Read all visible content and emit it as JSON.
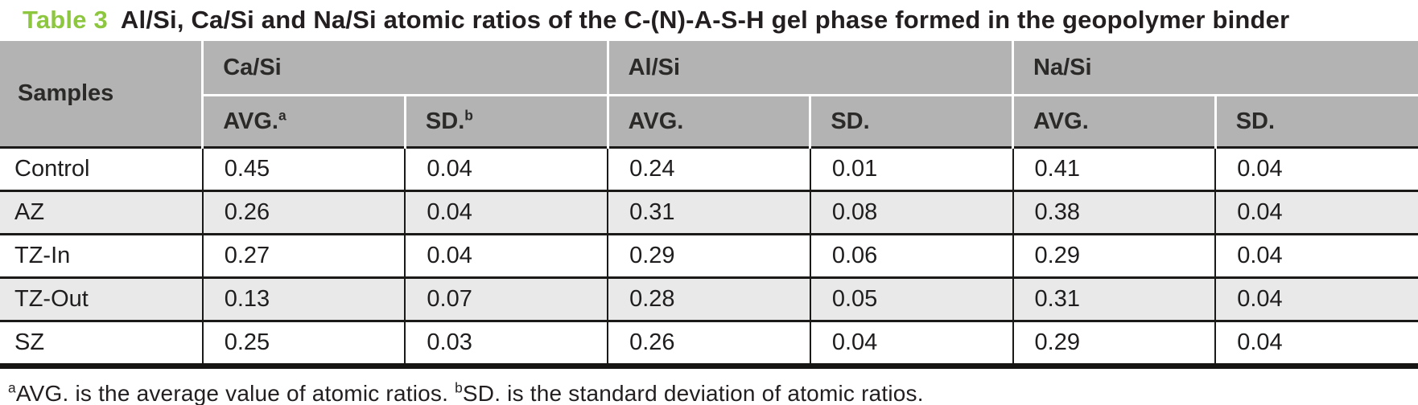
{
  "title": {
    "label": "Table 3",
    "text": "Al/Si, Ca/Si and Na/Si atomic ratios of the C-(N)-A-S-H gel phase formed in the geopolymer binder"
  },
  "table": {
    "samples_header": "Samples",
    "groups": [
      {
        "label": "Ca/Si"
      },
      {
        "label": "Al/Si"
      },
      {
        "label": "Na/Si"
      }
    ],
    "subheaders": {
      "avg": "AVG.",
      "avg_sup": "a",
      "sd": "SD.",
      "sd_sup": "b"
    },
    "rows": [
      {
        "sample": "Control",
        "values": [
          "0.45",
          "0.04",
          "0.24",
          "0.01",
          "0.41",
          "0.04"
        ]
      },
      {
        "sample": "AZ",
        "values": [
          "0.26",
          "0.04",
          "0.31",
          "0.08",
          "0.38",
          "0.04"
        ]
      },
      {
        "sample": "TZ-In",
        "values": [
          "0.27",
          "0.04",
          "0.29",
          "0.06",
          "0.29",
          "0.04"
        ]
      },
      {
        "sample": "TZ-Out",
        "values": [
          "0.13",
          "0.07",
          "0.28",
          "0.05",
          "0.31",
          "0.04"
        ]
      },
      {
        "sample": "SZ",
        "values": [
          "0.25",
          "0.03",
          "0.26",
          "0.04",
          "0.29",
          "0.04"
        ]
      }
    ]
  },
  "footnote": {
    "sup_a": "a",
    "text_a": "AVG. is the average value of atomic ratios. ",
    "sup_b": "b",
    "text_b": "SD. is the standard deviation of atomic ratios."
  },
  "colors": {
    "accent_green": "#8dc63f",
    "header_gray": "#b3b3b3",
    "stripe_gray": "#e9e9e9",
    "border_black": "#1b1a19",
    "text_dark": "#231f20"
  }
}
